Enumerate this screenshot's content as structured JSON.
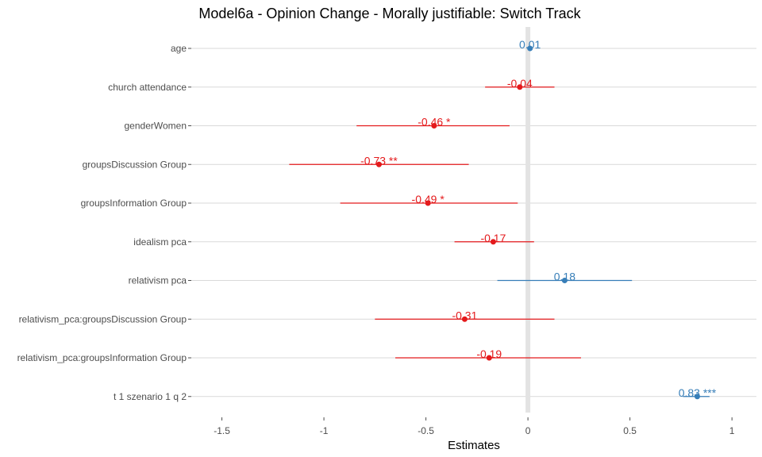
{
  "chart_data": {
    "type": "forest",
    "title": "Model6a - Opinion Change - Morally justifiable: Switch Track",
    "xlabel": "Estimates",
    "xlim": [
      -1.65,
      1.12
    ],
    "x_ticks": [
      -1.5,
      -1,
      -0.5,
      0,
      0.5,
      1
    ],
    "x_tick_labels": [
      "-1.5",
      "-1",
      "-0.5",
      "0",
      "0.5",
      "1"
    ],
    "grid": "horizontal",
    "reference_line": 0,
    "colors": {
      "positive": "#377EB8",
      "negative": "#E41A1C",
      "grid": "#d9d9d9",
      "reference": "#e3e3e3"
    },
    "terms": [
      {
        "term": "age",
        "estimate": 0.01,
        "lower": 0.0,
        "upper": 0.02,
        "label": "0.01"
      },
      {
        "term": "church attendance",
        "estimate": -0.04,
        "lower": -0.21,
        "upper": 0.13,
        "label": "-0.04"
      },
      {
        "term": "genderWomen",
        "estimate": -0.46,
        "lower": -0.84,
        "upper": -0.09,
        "label": "-0.46 *"
      },
      {
        "term": "groupsDiscussion Group",
        "estimate": -0.73,
        "lower": -1.17,
        "upper": -0.29,
        "label": "-0.73 **"
      },
      {
        "term": "groupsInformation Group",
        "estimate": -0.49,
        "lower": -0.92,
        "upper": -0.05,
        "label": "-0.49 *"
      },
      {
        "term": "idealism pca",
        "estimate": -0.17,
        "lower": -0.36,
        "upper": 0.03,
        "label": "-0.17"
      },
      {
        "term": "relativism pca",
        "estimate": 0.18,
        "lower": -0.15,
        "upper": 0.51,
        "label": "0.18"
      },
      {
        "term": "relativism_pca:groupsDiscussion Group",
        "estimate": -0.31,
        "lower": -0.75,
        "upper": 0.13,
        "label": "-0.31"
      },
      {
        "term": "relativism_pca:groupsInformation Group",
        "estimate": -0.19,
        "lower": -0.65,
        "upper": 0.26,
        "label": "-0.19"
      },
      {
        "term": "t 1 szenario 1 q 2",
        "estimate": 0.83,
        "lower": 0.76,
        "upper": 0.89,
        "label": "0.83 ***"
      }
    ]
  }
}
